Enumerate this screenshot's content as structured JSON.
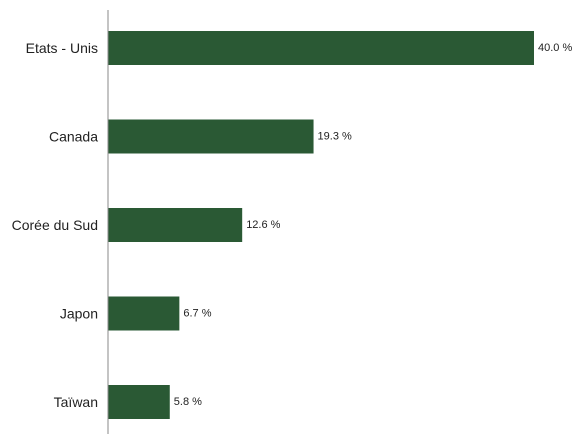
{
  "chart_data": {
    "type": "bar",
    "orientation": "horizontal",
    "categories": [
      "Etats - Unis",
      "Canada",
      "Corée du Sud",
      "Japon",
      "Taïwan"
    ],
    "values": [
      40.0,
      19.3,
      12.6,
      6.7,
      5.8
    ],
    "data_labels": [
      "40.0 %",
      "19.3 %",
      "12.6 %",
      "6.7 %",
      "5.8 %"
    ],
    "unit": "%",
    "xlim": [
      0,
      40.0
    ],
    "grid": false,
    "legend": "none",
    "colors": {
      "bar": "#2a5934",
      "axis": "#8a8a8a",
      "text": "#222222"
    }
  }
}
